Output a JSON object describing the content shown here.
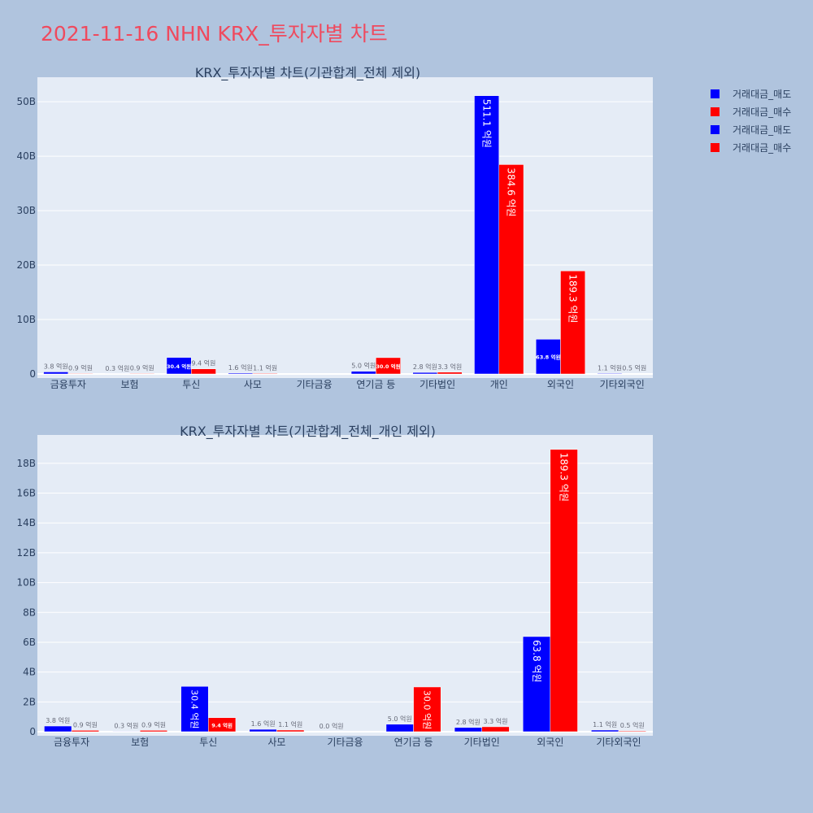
{
  "page": {
    "title": "2021-11-16 NHN KRX_투자자별 차트"
  },
  "legend": [
    {
      "label": "거래대금_매도",
      "color": "#0000ff"
    },
    {
      "label": "거래대금_매수",
      "color": "#ff0000"
    },
    {
      "label": "거래대금_매도",
      "color": "#0000ff"
    },
    {
      "label": "거래대금_매수",
      "color": "#ff0000"
    }
  ],
  "chart_data": [
    {
      "type": "bar",
      "title": "KRX_투자자별 차트(기관합계_전체 제외)",
      "categories": [
        "금융투자",
        "보험",
        "투신",
        "사모",
        "기타금융",
        "연기금 등",
        "기타법인",
        "개인",
        "외국인",
        "기타외국인"
      ],
      "ylim": [
        0,
        54.5
      ],
      "y_ticks": [
        0,
        10,
        20,
        30,
        40,
        50
      ],
      "y_tick_labels": [
        "0",
        "10B",
        "20B",
        "30B",
        "40B",
        "50B"
      ],
      "grid": true,
      "series": [
        {
          "name": "거래대금_매도",
          "color": "#0000ff",
          "values": [
            0.38,
            0.03,
            3.04,
            0.16,
            null,
            0.5,
            0.28,
            51.11,
            6.38,
            0.11
          ],
          "labels": [
            "3.8 억원",
            "0.3 억원",
            "30.4 억원",
            "1.6 억원",
            "",
            "5.0 억원",
            "2.8 억원",
            "511.1 억원",
            "63.8 억원",
            "1.1 억원"
          ]
        },
        {
          "name": "거래대금_매수",
          "color": "#ff0000",
          "values": [
            0.09,
            0.09,
            0.94,
            0.11,
            null,
            3.0,
            0.33,
            38.46,
            18.93,
            0.05
          ],
          "labels": [
            "0.9 억원",
            "0.9 억원",
            "9.4 억원",
            "1.1 억원",
            "",
            "30.0 억원",
            "3.3 억원",
            "384.6 억원",
            "189.3 억원",
            "0.5 억원"
          ]
        }
      ]
    },
    {
      "type": "bar",
      "title": "KRX_투자자별 차트(기관합계_전체_개인 제외)",
      "categories": [
        "금융투자",
        "보험",
        "투신",
        "사모",
        "기타금융",
        "연기금 등",
        "기타법인",
        "외국인",
        "기타외국인"
      ],
      "ylim": [
        0,
        19.9
      ],
      "y_ticks": [
        0,
        2,
        4,
        6,
        8,
        10,
        12,
        14,
        16,
        18
      ],
      "y_tick_labels": [
        "0",
        "2B",
        "4B",
        "6B",
        "8B",
        "10B",
        "12B",
        "14B",
        "16B",
        "18B"
      ],
      "grid": true,
      "series": [
        {
          "name": "거래대금_매도",
          "color": "#0000ff",
          "values": [
            0.38,
            0.03,
            3.04,
            0.16,
            0.0,
            0.5,
            0.28,
            6.38,
            0.11
          ],
          "labels": [
            "3.8 억원",
            "0.3 억원",
            "30.4 억원",
            "1.6 억원",
            "0.0 억원",
            "5.0 억원",
            "2.8 억원",
            "63.8 억원",
            "1.1 억원"
          ]
        },
        {
          "name": "거래대금_매수",
          "color": "#ff0000",
          "values": [
            0.09,
            0.09,
            0.94,
            0.11,
            null,
            3.0,
            0.33,
            18.93,
            0.05
          ],
          "labels": [
            "0.9 억원",
            "0.9 억원",
            "9.4 억원",
            "1.1 억원",
            "",
            "30.0 억원",
            "3.3 억원",
            "189.3 억원",
            "0.5 억원"
          ]
        }
      ]
    }
  ]
}
